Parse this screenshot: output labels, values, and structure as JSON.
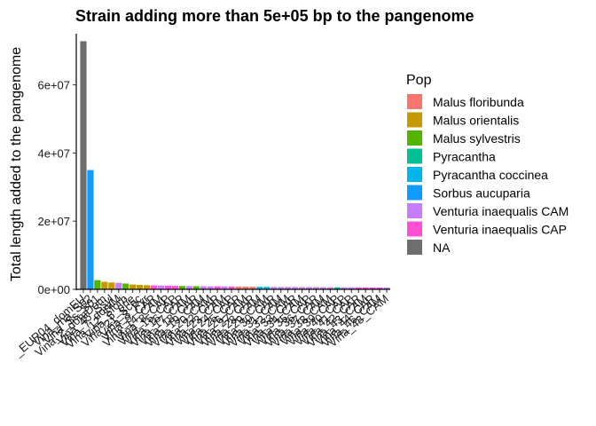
{
  "chart_data": {
    "type": "bar",
    "title": "Strain adding more than 5e+05 bp to the pangenome",
    "xlabel": "",
    "ylabel": "Total length added to the pangenome",
    "ylim": [
      0,
      75000000
    ],
    "yticks": [
      {
        "value": 0,
        "label": "0e+00"
      },
      {
        "value": 20000000,
        "label": "2e+07"
      },
      {
        "value": 40000000,
        "label": "4e+07"
      },
      {
        "value": 60000000,
        "label": "6e+07"
      }
    ],
    "grid": false,
    "legend": {
      "title": "Pop",
      "position": "right",
      "entries": [
        {
          "name": "Malus floribunda",
          "color": "#F8766D"
        },
        {
          "name": "Malus orientalis",
          "color": "#C49A00"
        },
        {
          "name": "Malus sylvestris",
          "color": "#53B400"
        },
        {
          "name": "Pyracantha",
          "color": "#00C094"
        },
        {
          "name": "Pyracantha coccinea",
          "color": "#00B6EB"
        },
        {
          "name": "Sorbus aucuparia",
          "color": "#0F9BFF"
        },
        {
          "name": "Venturia inaequalis CAM",
          "color": "#C77CFF"
        },
        {
          "name": "Venturia inaequalis CAP",
          "color": "#FF4FD2"
        },
        {
          "name": "NA",
          "color": "#6E6E6E"
        }
      ]
    },
    "categories": [
      "_EUR04_domEU",
      "Vina_rna_S02",
      "Vina_Ss_S01",
      "Vina_2_domDom",
      "Vina_45_Ssyl",
      "Vina_7_domM",
      "Vina_12_Sforb",
      "Vina_5_orie",
      "Vina_21_Scoc",
      "Vina_3_Pyr",
      "Vina_9_CAP",
      "Vina_14_CAM",
      "Vina_8_CAP",
      "Vina_15_CAP",
      "Vina_16_CAP",
      "Vina_17_CAM",
      "Vina_18_CAP",
      "Vina_19_CAM",
      "Vina_20_CAM",
      "Vina_22_CAP",
      "Vina_23_CAM",
      "Vina_24_CAP",
      "Vina_25_CAP",
      "Vina_26_CAM",
      "Vina_27_CAP",
      "Vina_28_CAM",
      "Vina_29_CAM",
      "Vina_30_CAP",
      "Vina_31_CAM",
      "Vina_32_CAM",
      "Vina_33_CAP",
      "Vina_34_CAM",
      "Vina_35_CAP",
      "Vina_36_CAP",
      "Vina_37_CAM",
      "Vina_38_CAM",
      "Vina_39_CAP",
      "Vina_40_CAP",
      "Vina_41_CAP",
      "Vina_42_CAP",
      "Vina_43_CAM",
      "Vina_44_CAP",
      "Vina_46_CAM",
      "Vina_48_CAM"
    ],
    "values": [
      72800000,
      35000000,
      2700000,
      2200000,
      2000000,
      1900000,
      1700000,
      1400000,
      1300000,
      1200000,
      1150000,
      1100000,
      1050000,
      1000000,
      980000,
      950000,
      930000,
      900000,
      880000,
      860000,
      840000,
      820000,
      800000,
      780000,
      760000,
      740000,
      720000,
      700000,
      690000,
      680000,
      670000,
      660000,
      650000,
      640000,
      630000,
      620000,
      610000,
      600000,
      590000,
      580000,
      570000,
      560000,
      550000,
      540000
    ],
    "groups": [
      "NA",
      "Sorbus aucuparia",
      "Malus sylvestris",
      "Malus orientalis",
      "Malus orientalis",
      "Venturia inaequalis CAM",
      "Malus sylvestris",
      "Malus orientalis",
      "Malus orientalis",
      "Malus orientalis",
      "Venturia inaequalis CAP",
      "Venturia inaequalis CAM",
      "Venturia inaequalis CAP",
      "Venturia inaequalis CAP",
      "Malus sylvestris",
      "Venturia inaequalis CAM",
      "Malus sylvestris",
      "Venturia inaequalis CAM",
      "Venturia inaequalis CAM",
      "Venturia inaequalis CAP",
      "Venturia inaequalis CAM",
      "Venturia inaequalis CAP",
      "Malus floribunda",
      "Malus floribunda",
      "Malus floribunda",
      "Pyracantha coccinea",
      "Pyracantha coccinea",
      "Venturia inaequalis CAM",
      "Venturia inaequalis CAM",
      "Venturia inaequalis CAM",
      "Venturia inaequalis CAM",
      "Venturia inaequalis CAM",
      "Venturia inaequalis CAM",
      "Venturia inaequalis CAM",
      "Venturia inaequalis CAM",
      "Venturia inaequalis CAM",
      "Pyracantha",
      "Venturia inaequalis CAM",
      "Venturia inaequalis CAM",
      "Venturia inaequalis CAP",
      "Venturia inaequalis CAP",
      "Venturia inaequalis CAP",
      "Venturia inaequalis CAP",
      "Venturia inaequalis CAM"
    ]
  }
}
